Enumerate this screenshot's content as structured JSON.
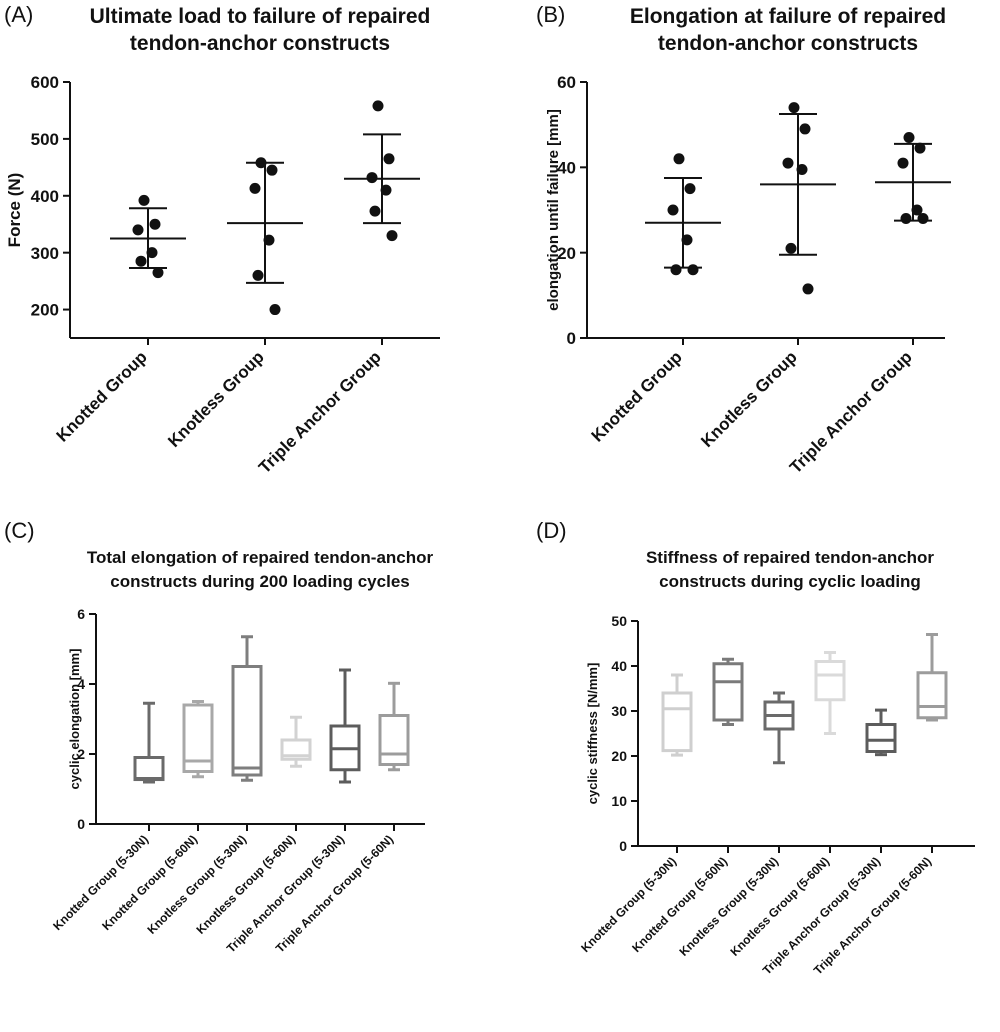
{
  "chart_data": [
    {
      "type": "scatter",
      "panel_label": "(A)",
      "title_lines": [
        "Ultimate load to failure of repaired",
        "tendon-anchor constructs"
      ],
      "ylabel": "Force (N)",
      "ylim": [
        150,
        600
      ],
      "yticks": [
        200,
        300,
        400,
        500,
        600
      ],
      "categories": [
        "Knotted Group",
        "Knotless Group",
        "Triple Anchor Group"
      ],
      "groups": [
        {
          "points": [
            392,
            350,
            340,
            300,
            285,
            265
          ],
          "mean": 325,
          "sd_low": 273,
          "sd_high": 378
        },
        {
          "points": [
            458,
            445,
            413,
            322,
            260,
            200
          ],
          "mean": 352,
          "sd_low": 247,
          "sd_high": 458
        },
        {
          "points": [
            558,
            465,
            432,
            410,
            373,
            330
          ],
          "mean": 430,
          "sd_low": 352,
          "sd_high": 508
        }
      ]
    },
    {
      "type": "scatter",
      "panel_label": "(B)",
      "title_lines": [
        "Elongation at failure of repaired",
        "tendon-anchor constructs"
      ],
      "ylabel": "elongation until failure [mm]",
      "ylim": [
        0,
        60
      ],
      "yticks": [
        0,
        20,
        40,
        60
      ],
      "categories": [
        "Knotted Group",
        "Knotless Group",
        "Triple Anchor Group"
      ],
      "groups": [
        {
          "points": [
            42,
            35,
            30,
            23,
            16,
            16
          ],
          "mean": 27,
          "sd_low": 16.5,
          "sd_high": 37.5
        },
        {
          "points": [
            54,
            49,
            41,
            39.5,
            21,
            11.5
          ],
          "mean": 36,
          "sd_low": 19.5,
          "sd_high": 52.5
        },
        {
          "points": [
            47,
            44.5,
            41,
            30,
            28,
            28
          ],
          "mean": 36.5,
          "sd_low": 27.5,
          "sd_high": 45.5
        }
      ]
    },
    {
      "type": "box",
      "panel_label": "(C)",
      "title_lines": [
        "Total elongation of repaired tendon-anchor",
        "constructs during 200 loading cycles"
      ],
      "ylabel": "cyclic elongation [mm]",
      "ylim": [
        0,
        6
      ],
      "yticks": [
        0,
        2,
        4,
        6
      ],
      "categories": [
        "Knotted Group (5-30N)",
        "Knotted Group (5-60N)",
        "Knotless Group (5-30N)",
        "Knotless Group (5-60N)",
        "Triple Anchor Group (5-30N)",
        "Triple Anchor Group (5-60N)"
      ],
      "boxes": [
        {
          "min": 1.2,
          "q1": 1.27,
          "median": 1.3,
          "q3": 1.9,
          "max": 3.45,
          "color": "#6a6a6a"
        },
        {
          "min": 1.35,
          "q1": 1.5,
          "median": 1.8,
          "q3": 3.4,
          "max": 3.5,
          "color": "#a8a8a8"
        },
        {
          "min": 1.25,
          "q1": 1.4,
          "median": 1.6,
          "q3": 4.5,
          "max": 5.35,
          "color": "#7e7e7e"
        },
        {
          "min": 1.65,
          "q1": 1.85,
          "median": 1.95,
          "q3": 2.4,
          "max": 3.05,
          "color": "#d2d2d2"
        },
        {
          "min": 1.2,
          "q1": 1.55,
          "median": 2.15,
          "q3": 2.8,
          "max": 4.4,
          "color": "#5c5c5c"
        },
        {
          "min": 1.55,
          "q1": 1.7,
          "median": 2.0,
          "q3": 3.1,
          "max": 4.02,
          "color": "#9c9c9c"
        }
      ]
    },
    {
      "type": "box",
      "panel_label": "(D)",
      "title_lines": [
        "Stiffness of repaired tendon-anchor",
        "constructs during cyclic loading"
      ],
      "ylabel": "cyclic stiffness [N/mm]",
      "ylim": [
        0,
        50
      ],
      "yticks": [
        0,
        10,
        20,
        30,
        40,
        50
      ],
      "categories": [
        "Knotted Group (5-30N)",
        "Knotted Group (5-60N)",
        "Knotless Group (5-30N)",
        "Knotless Group (5-60N)",
        "Triple Anchor Group (5-30N)",
        "Triple Anchor Group (5-60N)"
      ],
      "boxes": [
        {
          "min": 20.2,
          "q1": 21.2,
          "median": 30.5,
          "q3": 34,
          "max": 38,
          "color": "#cfcfcf"
        },
        {
          "min": 27,
          "q1": 28,
          "median": 36.5,
          "q3": 40.5,
          "max": 41.5,
          "color": "#7a7a7a"
        },
        {
          "min": 18.5,
          "q1": 26,
          "median": 29,
          "q3": 32,
          "max": 34,
          "color": "#6a6a6a"
        },
        {
          "min": 25,
          "q1": 32.5,
          "median": 38,
          "q3": 41,
          "max": 43,
          "color": "#dadada"
        },
        {
          "min": 20.3,
          "q1": 21,
          "median": 23.5,
          "q3": 27,
          "max": 30.2,
          "color": "#5c5c5c"
        },
        {
          "min": 28,
          "q1": 28.5,
          "median": 31,
          "q3": 38.5,
          "max": 47,
          "color": "#9c9c9c"
        }
      ]
    }
  ]
}
